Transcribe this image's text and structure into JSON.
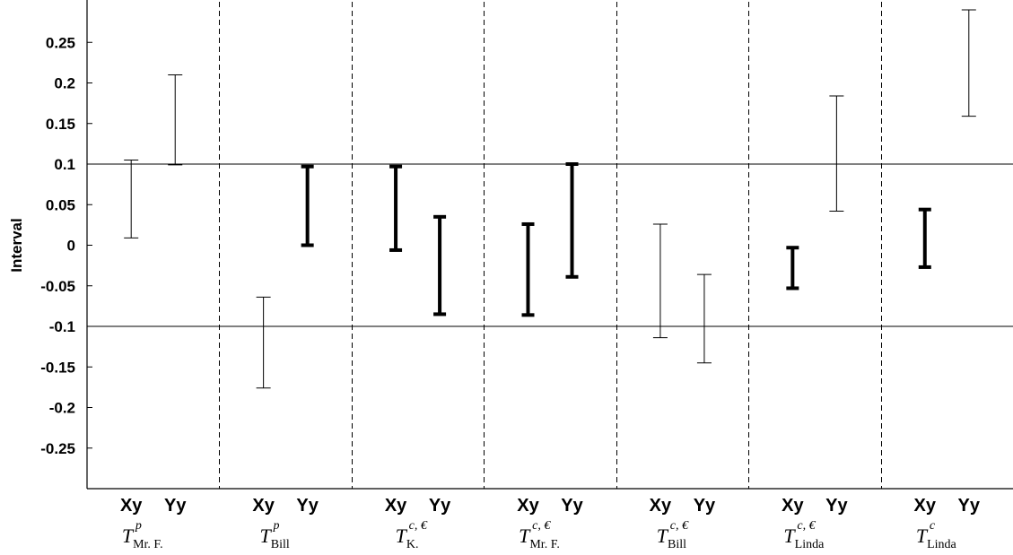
{
  "chart_data": {
    "type": "interval",
    "title": "",
    "ylabel": "Interval",
    "xlabel": "",
    "ylim": [
      -0.3,
      0.3
    ],
    "y_ticks": [
      -0.25,
      -0.2,
      -0.15,
      -0.1,
      -0.05,
      0,
      0.05,
      0.1,
      0.15,
      0.2,
      0.25
    ],
    "y_tick_labels": [
      "-0.25",
      "-0.2",
      "-0.15",
      "-0.1",
      "-0.05",
      "0",
      "0.05",
      "0.1",
      "0.15",
      "0.2",
      "0.25"
    ],
    "reference_lines": [
      0.1,
      -0.1
    ],
    "group_separators": "dashed",
    "groups": [
      {
        "label": {
          "base": "T",
          "sup": "p",
          "sub": "Mr. F."
        },
        "intervals": [
          {
            "name": "Xy",
            "low": 0.009,
            "high": 0.105,
            "bold": false
          },
          {
            "name": "Yy",
            "low": 0.099,
            "high": 0.21,
            "bold": false
          }
        ]
      },
      {
        "label": {
          "base": "T",
          "sup": "p",
          "sub": "Bill"
        },
        "intervals": [
          {
            "name": "Xy",
            "low": -0.176,
            "high": -0.064,
            "bold": false
          },
          {
            "name": "Yy",
            "low": 0.0,
            "high": 0.097,
            "bold": true
          }
        ]
      },
      {
        "label": {
          "base": "T",
          "sup": "c, €",
          "sub": "K."
        },
        "intervals": [
          {
            "name": "Xy",
            "low": -0.006,
            "high": 0.097,
            "bold": true
          },
          {
            "name": "Yy",
            "low": -0.085,
            "high": 0.035,
            "bold": true
          }
        ]
      },
      {
        "label": {
          "base": "T",
          "sup": "c, €",
          "sub": "Mr. F."
        },
        "intervals": [
          {
            "name": "Xy",
            "low": -0.086,
            "high": 0.026,
            "bold": true
          },
          {
            "name": "Yy",
            "low": -0.039,
            "high": 0.1,
            "bold": true
          }
        ]
      },
      {
        "label": {
          "base": "T",
          "sup": "c, €",
          "sub": "Bill"
        },
        "intervals": [
          {
            "name": "Xy",
            "low": -0.114,
            "high": 0.026,
            "bold": false
          },
          {
            "name": "Yy",
            "low": -0.145,
            "high": -0.036,
            "bold": false
          }
        ]
      },
      {
        "label": {
          "base": "T",
          "sup": "c, €",
          "sub": "Linda"
        },
        "intervals": [
          {
            "name": "Xy",
            "low": -0.053,
            "high": -0.003,
            "bold": true
          },
          {
            "name": "Yy",
            "low": 0.042,
            "high": 0.184,
            "bold": false
          }
        ]
      },
      {
        "label": {
          "base": "T",
          "sup": "c",
          "sub": "Linda"
        },
        "intervals": [
          {
            "name": "Xy",
            "low": -0.027,
            "high": 0.044,
            "bold": true
          },
          {
            "name": "Yy",
            "low": 0.159,
            "high": 0.29,
            "bold": false
          }
        ]
      }
    ]
  }
}
